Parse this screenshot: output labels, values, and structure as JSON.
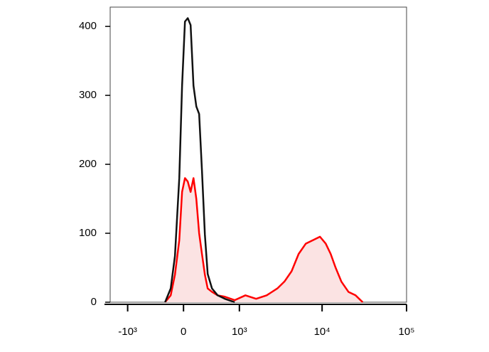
{
  "chart_data": {
    "type": "line",
    "xscale": "biexponential",
    "x": [
      -240,
      -163,
      -108,
      -53,
      -18,
      18,
      53,
      89,
      126,
      163,
      201,
      240,
      282,
      324,
      392,
      490,
      632,
      866,
      1195,
      1626,
      2185,
      2940,
      3572,
      4346,
      5267,
      6412,
      7786,
      9435,
      11038,
      12641,
      14473,
      16900,
      20518,
      24915,
      30274
    ],
    "series": [
      {
        "color": "#ff0000",
        "fill": "#fbe3e3",
        "values": [
          0,
          10,
          40,
          90,
          160,
          180,
          175,
          160,
          180,
          150,
          100,
          70,
          40,
          20,
          15,
          10,
          8,
          3,
          10,
          5,
          10,
          20,
          30,
          45,
          70,
          85,
          90,
          95,
          85,
          70,
          50,
          30,
          15,
          10,
          0
        ]
      },
      {
        "color": "#111111",
        "values": [
          0,
          20,
          67,
          180,
          314,
          407,
          412,
          402,
          314,
          284,
          273,
          191,
          98,
          41,
          20,
          10,
          5,
          0,
          null,
          null,
          null,
          null,
          null,
          null,
          null,
          null,
          null,
          null,
          null,
          null,
          null,
          null,
          null,
          null,
          null
        ]
      }
    ],
    "xlim": [
      -1660,
      100000
    ],
    "xticks": [
      {
        "value": -1000,
        "label": "-10³"
      },
      0,
      {
        "value": 1000,
        "label": "10³"
      },
      {
        "value": 10000,
        "label": "10⁴"
      },
      {
        "value": 100000,
        "label": "10⁵"
      }
    ],
    "ylim": [
      0,
      428
    ],
    "yticks": [
      0,
      100,
      200,
      300,
      400
    ]
  }
}
